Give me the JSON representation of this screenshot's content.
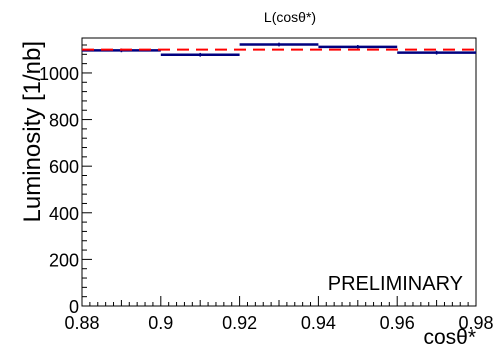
{
  "chart_data": {
    "type": "line",
    "title": "L(cosθ*)",
    "xlabel": "cosθ*",
    "ylabel": "Luminosity [1/nb]",
    "annotation": "PRELIMINARY",
    "xlim": [
      0.88,
      0.98
    ],
    "ylim": [
      0,
      1150
    ],
    "x_ticks": [
      0.88,
      0.9,
      0.92,
      0.94,
      0.96,
      0.98
    ],
    "x_tick_labels": [
      "0.88",
      "0.9",
      "0.92",
      "0.94",
      "0.96",
      "0.98"
    ],
    "y_ticks": [
      0,
      200,
      400,
      600,
      800,
      1000
    ],
    "y_tick_labels": [
      "0",
      "200",
      "400",
      "600",
      "800",
      "1000"
    ],
    "grid": false,
    "series": [
      {
        "kind": "histogram",
        "color": "#00007f",
        "bins": [
          {
            "x_low": 0.88,
            "x_high": 0.9,
            "value": 1097,
            "error": 8
          },
          {
            "x_low": 0.9,
            "x_high": 0.92,
            "value": 1078,
            "error": 8
          },
          {
            "x_low": 0.92,
            "x_high": 0.94,
            "value": 1122,
            "error": 8
          },
          {
            "x_low": 0.94,
            "x_high": 0.96,
            "value": 1112,
            "error": 8
          },
          {
            "x_low": 0.96,
            "x_high": 0.98,
            "value": 1087,
            "error": 8
          }
        ]
      },
      {
        "kind": "hline",
        "style": "dashed",
        "color": "#ff0000",
        "value": 1100
      }
    ]
  }
}
